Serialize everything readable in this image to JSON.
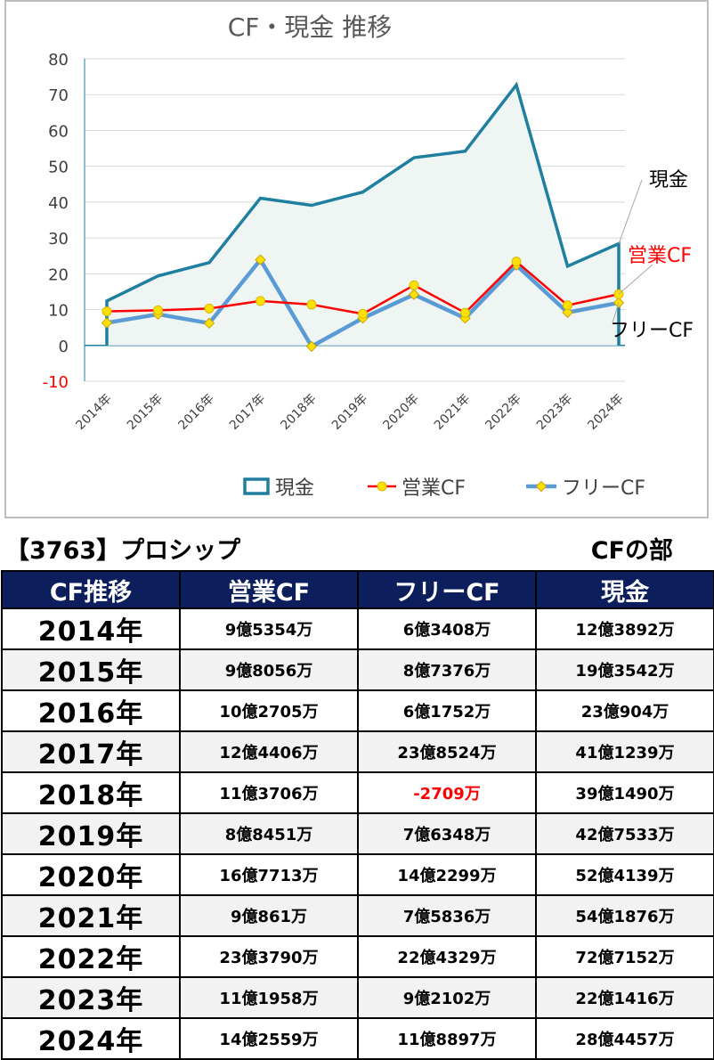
{
  "chart_data": {
    "type": "line",
    "title": "CF・現金 推移",
    "categories": [
      "2014年",
      "2015年",
      "2016年",
      "2017年",
      "2018年",
      "2019年",
      "2020年",
      "2021年",
      "2022年",
      "2023年",
      "2024年"
    ],
    "ylim": [
      -10,
      80
    ],
    "yticks": [
      -10,
      0,
      10,
      20,
      30,
      40,
      50,
      60,
      70,
      80
    ],
    "grid": true,
    "legend_position": "bottom",
    "series": [
      {
        "name": "現金",
        "values": [
          12.4,
          19.4,
          23.1,
          41.1,
          39.1,
          42.8,
          52.4,
          54.2,
          72.7,
          22.1,
          28.4
        ],
        "color": "#1f7f9f",
        "style": "area"
      },
      {
        "name": "営業CF",
        "values": [
          9.5,
          9.8,
          10.3,
          12.4,
          11.4,
          8.8,
          16.8,
          9.1,
          23.4,
          11.2,
          14.3
        ],
        "color": "#ff0000",
        "style": "line-markers"
      },
      {
        "name": "フリーCF",
        "values": [
          6.3,
          8.7,
          6.2,
          23.9,
          -0.27,
          7.6,
          14.2,
          7.6,
          22.4,
          9.2,
          11.9
        ],
        "color": "#5b9bd5",
        "style": "line-markers"
      }
    ],
    "annotations": [
      {
        "text": "現金",
        "color": "#000000"
      },
      {
        "text": "営業CF",
        "color": "#ff0000"
      },
      {
        "text": "フリーCF",
        "color": "#000000"
      }
    ],
    "neg_tick_color": "#ff0000"
  },
  "caption": {
    "company": "【3763】プロシップ",
    "section": "CFの部"
  },
  "table": {
    "headers": [
      "CF推移",
      "営業CF",
      "フリーCF",
      "現金"
    ],
    "rows": [
      {
        "year": "2014年",
        "op": "9億5354万",
        "free": "6億3408万",
        "cash": "12億3892万"
      },
      {
        "year": "2015年",
        "op": "9億8056万",
        "free": "8億7376万",
        "cash": "19億3542万"
      },
      {
        "year": "2016年",
        "op": "10億2705万",
        "free": "6億1752万",
        "cash": "23億904万"
      },
      {
        "year": "2017年",
        "op": "12億4406万",
        "free": "23億8524万",
        "cash": "41億1239万"
      },
      {
        "year": "2018年",
        "op": "11億3706万",
        "free": "-2709万",
        "cash": "39億1490万",
        "free_negative": true
      },
      {
        "year": "2019年",
        "op": "8億8451万",
        "free": "7億6348万",
        "cash": "42億7533万"
      },
      {
        "year": "2020年",
        "op": "16億7713万",
        "free": "14億2299万",
        "cash": "52億4139万"
      },
      {
        "year": "2021年",
        "op": "9億861万",
        "free": "7億5836万",
        "cash": "54億1876万"
      },
      {
        "year": "2022年",
        "op": "23億3790万",
        "free": "22億4329万",
        "cash": "72億7152万"
      },
      {
        "year": "2023年",
        "op": "11億1958万",
        "free": "9億2102万",
        "cash": "22億1416万"
      },
      {
        "year": "2024年",
        "op": "14億2559万",
        "free": "11億8897万",
        "cash": "28億4457万"
      }
    ]
  }
}
